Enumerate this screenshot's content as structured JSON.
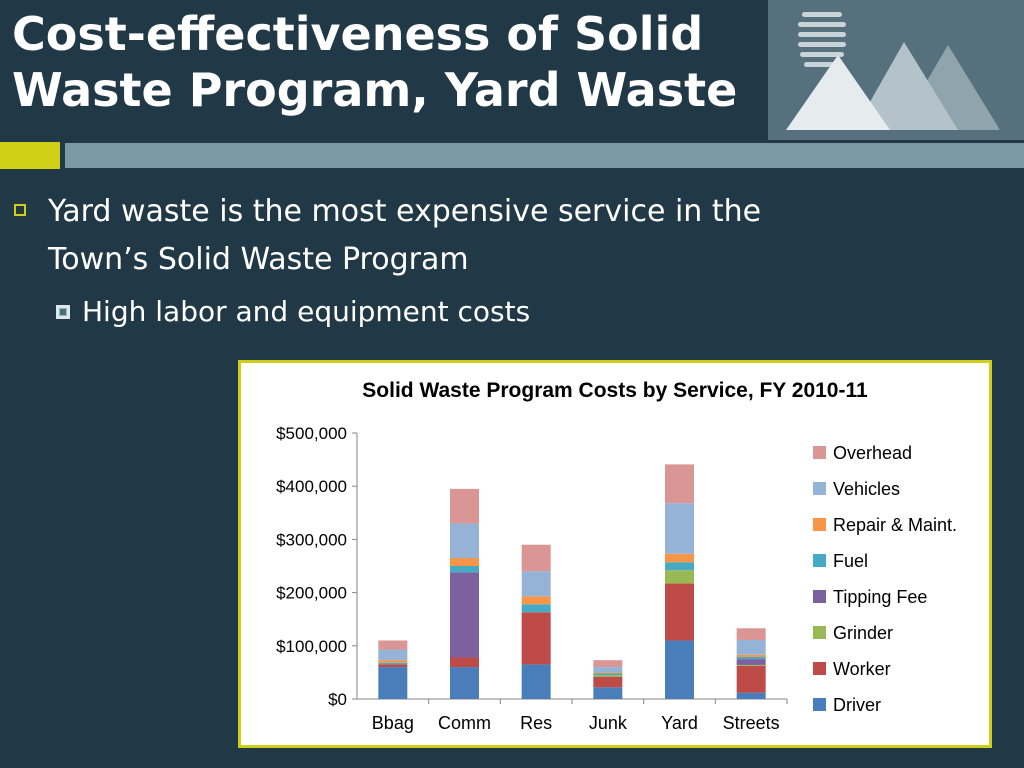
{
  "slide": {
    "title": "Cost-effectiveness of Solid Waste Program, Yard Waste",
    "bullet_1": "Yard waste is the most expensive service in the Town’s Solid Waste Program",
    "bullet_2": "High labor and equipment costs"
  },
  "colors": {
    "background": "#213847",
    "accent": "#cfcf18",
    "strip": "#7a9aa6"
  },
  "chart_data": {
    "type": "bar",
    "stacked": true,
    "title": "Solid Waste Program Costs by Service, FY 2010-11",
    "categories": [
      "Bbag",
      "Comm",
      "Res",
      "Junk",
      "Yard",
      "Streets"
    ],
    "ylim": [
      0,
      500000
    ],
    "yticks": [
      "$0",
      "$100,000",
      "$200,000",
      "$300,000",
      "$400,000",
      "$500,000"
    ],
    "ytick_values": [
      0,
      100000,
      200000,
      300000,
      400000,
      500000
    ],
    "legend_position": "right",
    "series": [
      {
        "name": "Driver",
        "color": "#4a7ebb",
        "values": [
          60000,
          60000,
          65000,
          22000,
          110000,
          12000
        ]
      },
      {
        "name": "Worker",
        "color": "#be4b48",
        "values": [
          5000,
          18000,
          98000,
          20000,
          107000,
          50000
        ]
      },
      {
        "name": "Grinder",
        "color": "#98b954",
        "values": [
          0,
          0,
          0,
          3000,
          25000,
          2000
        ]
      },
      {
        "name": "Tipping Fee",
        "color": "#7d60a0",
        "values": [
          0,
          160000,
          0,
          0,
          0,
          11000
        ]
      },
      {
        "name": "Fuel",
        "color": "#46aac5",
        "values": [
          3000,
          12000,
          15000,
          3000,
          15000,
          4000
        ]
      },
      {
        "name": "Repair & Maint.",
        "color": "#f79646",
        "values": [
          5000,
          15000,
          15000,
          2000,
          16000,
          4000
        ]
      },
      {
        "name": "Vehicles",
        "color": "#95b3d7",
        "values": [
          20000,
          65000,
          47000,
          10000,
          95000,
          28000
        ]
      },
      {
        "name": "Overhead",
        "color": "#d99694",
        "values": [
          17000,
          65000,
          50000,
          13000,
          73000,
          22000
        ]
      }
    ]
  }
}
